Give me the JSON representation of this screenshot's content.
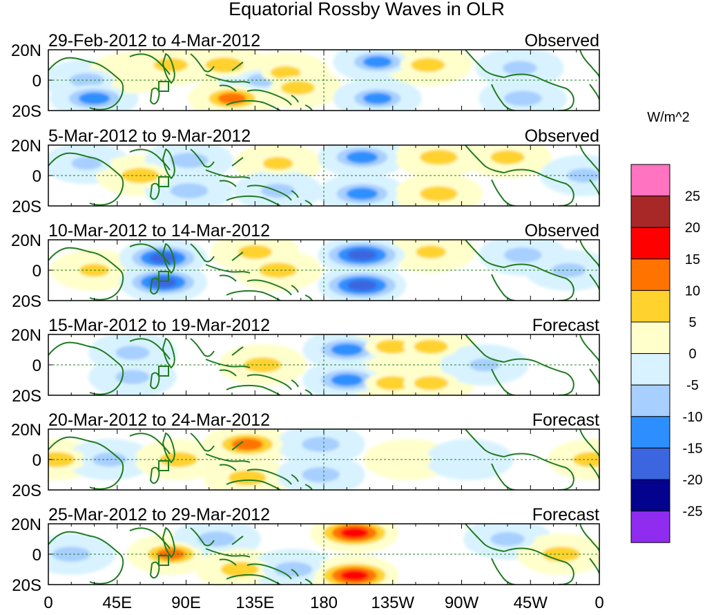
{
  "chart_data": {
    "type": "heatmap",
    "title": "Equatorial Rossby Waves in OLR",
    "units_label": "W/m^2",
    "x_ticks": [
      "0",
      "45E",
      "90E",
      "135E",
      "180",
      "135W",
      "90W",
      "45W",
      "0"
    ],
    "x_range_deg_east": [
      0,
      360
    ],
    "y_ticks": [
      "20N",
      "0",
      "20S"
    ],
    "y_range_deg": [
      -20,
      20
    ],
    "colorbar": {
      "tick_labels": [
        "25",
        "20",
        "15",
        "10",
        "5",
        "0",
        "-5",
        "-10",
        "-15",
        "-20",
        "-25"
      ],
      "colors": [
        "#ff73c0",
        "#a82828",
        "#ff0000",
        "#ff7300",
        "#ffd22e",
        "#ffffcc",
        "#d8f3ff",
        "#a7cfff",
        "#2d8fff",
        "#3b66df",
        "#03038d",
        "#8f2cf0"
      ]
    },
    "panels": [
      {
        "period": "29-Feb-2012 to 4-Mar-2012",
        "status": "Observed",
        "anomalies": [
          {
            "lon": 25,
            "lat": 0,
            "value": -10
          },
          {
            "lon": 30,
            "lat": -12,
            "value": -15
          },
          {
            "lon": 55,
            "lat": 5,
            "value": 5
          },
          {
            "lon": 80,
            "lat": 10,
            "value": 10
          },
          {
            "lon": 115,
            "lat": 10,
            "value": 12
          },
          {
            "lon": 120,
            "lat": -12,
            "value": 13
          },
          {
            "lon": 140,
            "lat": 0,
            "value": -8
          },
          {
            "lon": 155,
            "lat": 5,
            "value": 8
          },
          {
            "lon": 163,
            "lat": -5,
            "value": 10
          },
          {
            "lon": 215,
            "lat": 12,
            "value": -13
          },
          {
            "lon": 215,
            "lat": -12,
            "value": -13
          },
          {
            "lon": 248,
            "lat": 10,
            "value": 10
          },
          {
            "lon": 308,
            "lat": 8,
            "value": -10
          },
          {
            "lon": 310,
            "lat": -12,
            "value": -12
          }
        ]
      },
      {
        "period": "5-Mar-2012 to 9-Mar-2012",
        "status": "Observed",
        "anomalies": [
          {
            "lon": 25,
            "lat": 8,
            "value": -8
          },
          {
            "lon": 60,
            "lat": 0,
            "value": 12
          },
          {
            "lon": 92,
            "lat": 10,
            "value": -12
          },
          {
            "lon": 92,
            "lat": -10,
            "value": -12
          },
          {
            "lon": 150,
            "lat": 8,
            "value": 8
          },
          {
            "lon": 150,
            "lat": -10,
            "value": -10
          },
          {
            "lon": 205,
            "lat": 12,
            "value": -15
          },
          {
            "lon": 205,
            "lat": -12,
            "value": -15
          },
          {
            "lon": 255,
            "lat": 12,
            "value": 12
          },
          {
            "lon": 255,
            "lat": -12,
            "value": 12
          },
          {
            "lon": 300,
            "lat": 12,
            "value": 10
          },
          {
            "lon": 350,
            "lat": 0,
            "value": -10
          }
        ]
      },
      {
        "period": "10-Mar-2012 to 14-Mar-2012",
        "status": "Observed",
        "anomalies": [
          {
            "lon": 30,
            "lat": 0,
            "value": 8
          },
          {
            "lon": 75,
            "lat": 8,
            "value": -18
          },
          {
            "lon": 75,
            "lat": -8,
            "value": -18
          },
          {
            "lon": 135,
            "lat": 12,
            "value": 10
          },
          {
            "lon": 150,
            "lat": 0,
            "value": 12
          },
          {
            "lon": 205,
            "lat": 10,
            "value": -20
          },
          {
            "lon": 205,
            "lat": -10,
            "value": -20
          },
          {
            "lon": 250,
            "lat": 12,
            "value": 8
          },
          {
            "lon": 310,
            "lat": 10,
            "value": -12
          },
          {
            "lon": 340,
            "lat": 0,
            "value": -10
          }
        ]
      },
      {
        "period": "15-Mar-2012 to 19-Mar-2012",
        "status": "Forecast",
        "anomalies": [
          {
            "lon": 55,
            "lat": 8,
            "value": -10
          },
          {
            "lon": 55,
            "lat": -8,
            "value": -10
          },
          {
            "lon": 140,
            "lat": 0,
            "value": 12
          },
          {
            "lon": 195,
            "lat": 10,
            "value": -15
          },
          {
            "lon": 195,
            "lat": -10,
            "value": -15
          },
          {
            "lon": 225,
            "lat": 12,
            "value": 10
          },
          {
            "lon": 225,
            "lat": -12,
            "value": 10
          },
          {
            "lon": 250,
            "lat": 12,
            "value": 10
          },
          {
            "lon": 250,
            "lat": -12,
            "value": 10
          },
          {
            "lon": 285,
            "lat": 0,
            "value": -8
          }
        ]
      },
      {
        "period": "20-Mar-2012 to 24-Mar-2012",
        "status": "Forecast",
        "anomalies": [
          {
            "lon": 5,
            "lat": 0,
            "value": 12
          },
          {
            "lon": 40,
            "lat": 0,
            "value": -10
          },
          {
            "lon": 85,
            "lat": 0,
            "value": 12
          },
          {
            "lon": 130,
            "lat": 10,
            "value": 15
          },
          {
            "lon": 130,
            "lat": -12,
            "value": 12
          },
          {
            "lon": 178,
            "lat": 10,
            "value": -12
          },
          {
            "lon": 178,
            "lat": -10,
            "value": -12
          },
          {
            "lon": 235,
            "lat": 0,
            "value": 7
          },
          {
            "lon": 275,
            "lat": 0,
            "value": -7
          },
          {
            "lon": 355,
            "lat": 0,
            "value": 12
          }
        ]
      },
      {
        "period": "25-Mar-2012 to 29-Mar-2012",
        "status": "Forecast",
        "anomalies": [
          {
            "lon": 15,
            "lat": 0,
            "value": -12
          },
          {
            "lon": 80,
            "lat": 0,
            "value": 13
          },
          {
            "lon": 110,
            "lat": 10,
            "value": -12
          },
          {
            "lon": 125,
            "lat": -10,
            "value": 12
          },
          {
            "lon": 160,
            "lat": -10,
            "value": -12
          },
          {
            "lon": 200,
            "lat": 14,
            "value": 18
          },
          {
            "lon": 200,
            "lat": -14,
            "value": 18
          },
          {
            "lon": 300,
            "lat": 10,
            "value": -10
          },
          {
            "lon": 335,
            "lat": 0,
            "value": 12
          }
        ]
      }
    ]
  }
}
